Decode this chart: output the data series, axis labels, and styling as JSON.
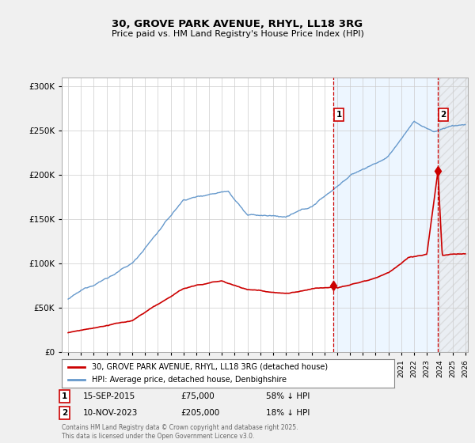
{
  "title": "30, GROVE PARK AVENUE, RHYL, LL18 3RG",
  "subtitle": "Price paid vs. HM Land Registry's House Price Index (HPI)",
  "legend_entry1": "30, GROVE PARK AVENUE, RHYL, LL18 3RG (detached house)",
  "legend_entry2": "HPI: Average price, detached house, Denbighshire",
  "transaction1_date": "15-SEP-2015",
  "transaction1_price": "£75,000",
  "transaction1_hpi": "58% ↓ HPI",
  "transaction1_year": 2015.71,
  "transaction1_value": 75000,
  "transaction2_date": "10-NOV-2023",
  "transaction2_price": "£205,000",
  "transaction2_hpi": "18% ↓ HPI",
  "transaction2_year": 2023.86,
  "transaction2_value": 205000,
  "footer": "Contains HM Land Registry data © Crown copyright and database right 2025.\nThis data is licensed under the Open Government Licence v3.0.",
  "line_color_property": "#cc0000",
  "line_color_hpi": "#6699cc",
  "shade_color": "#ddeeff",
  "vline_color": "#cc0000",
  "background_color": "#f0f0f0",
  "plot_background": "#ffffff",
  "ylim_max": 310000,
  "xlim_start": 1994.5,
  "xlim_end": 2026.2
}
